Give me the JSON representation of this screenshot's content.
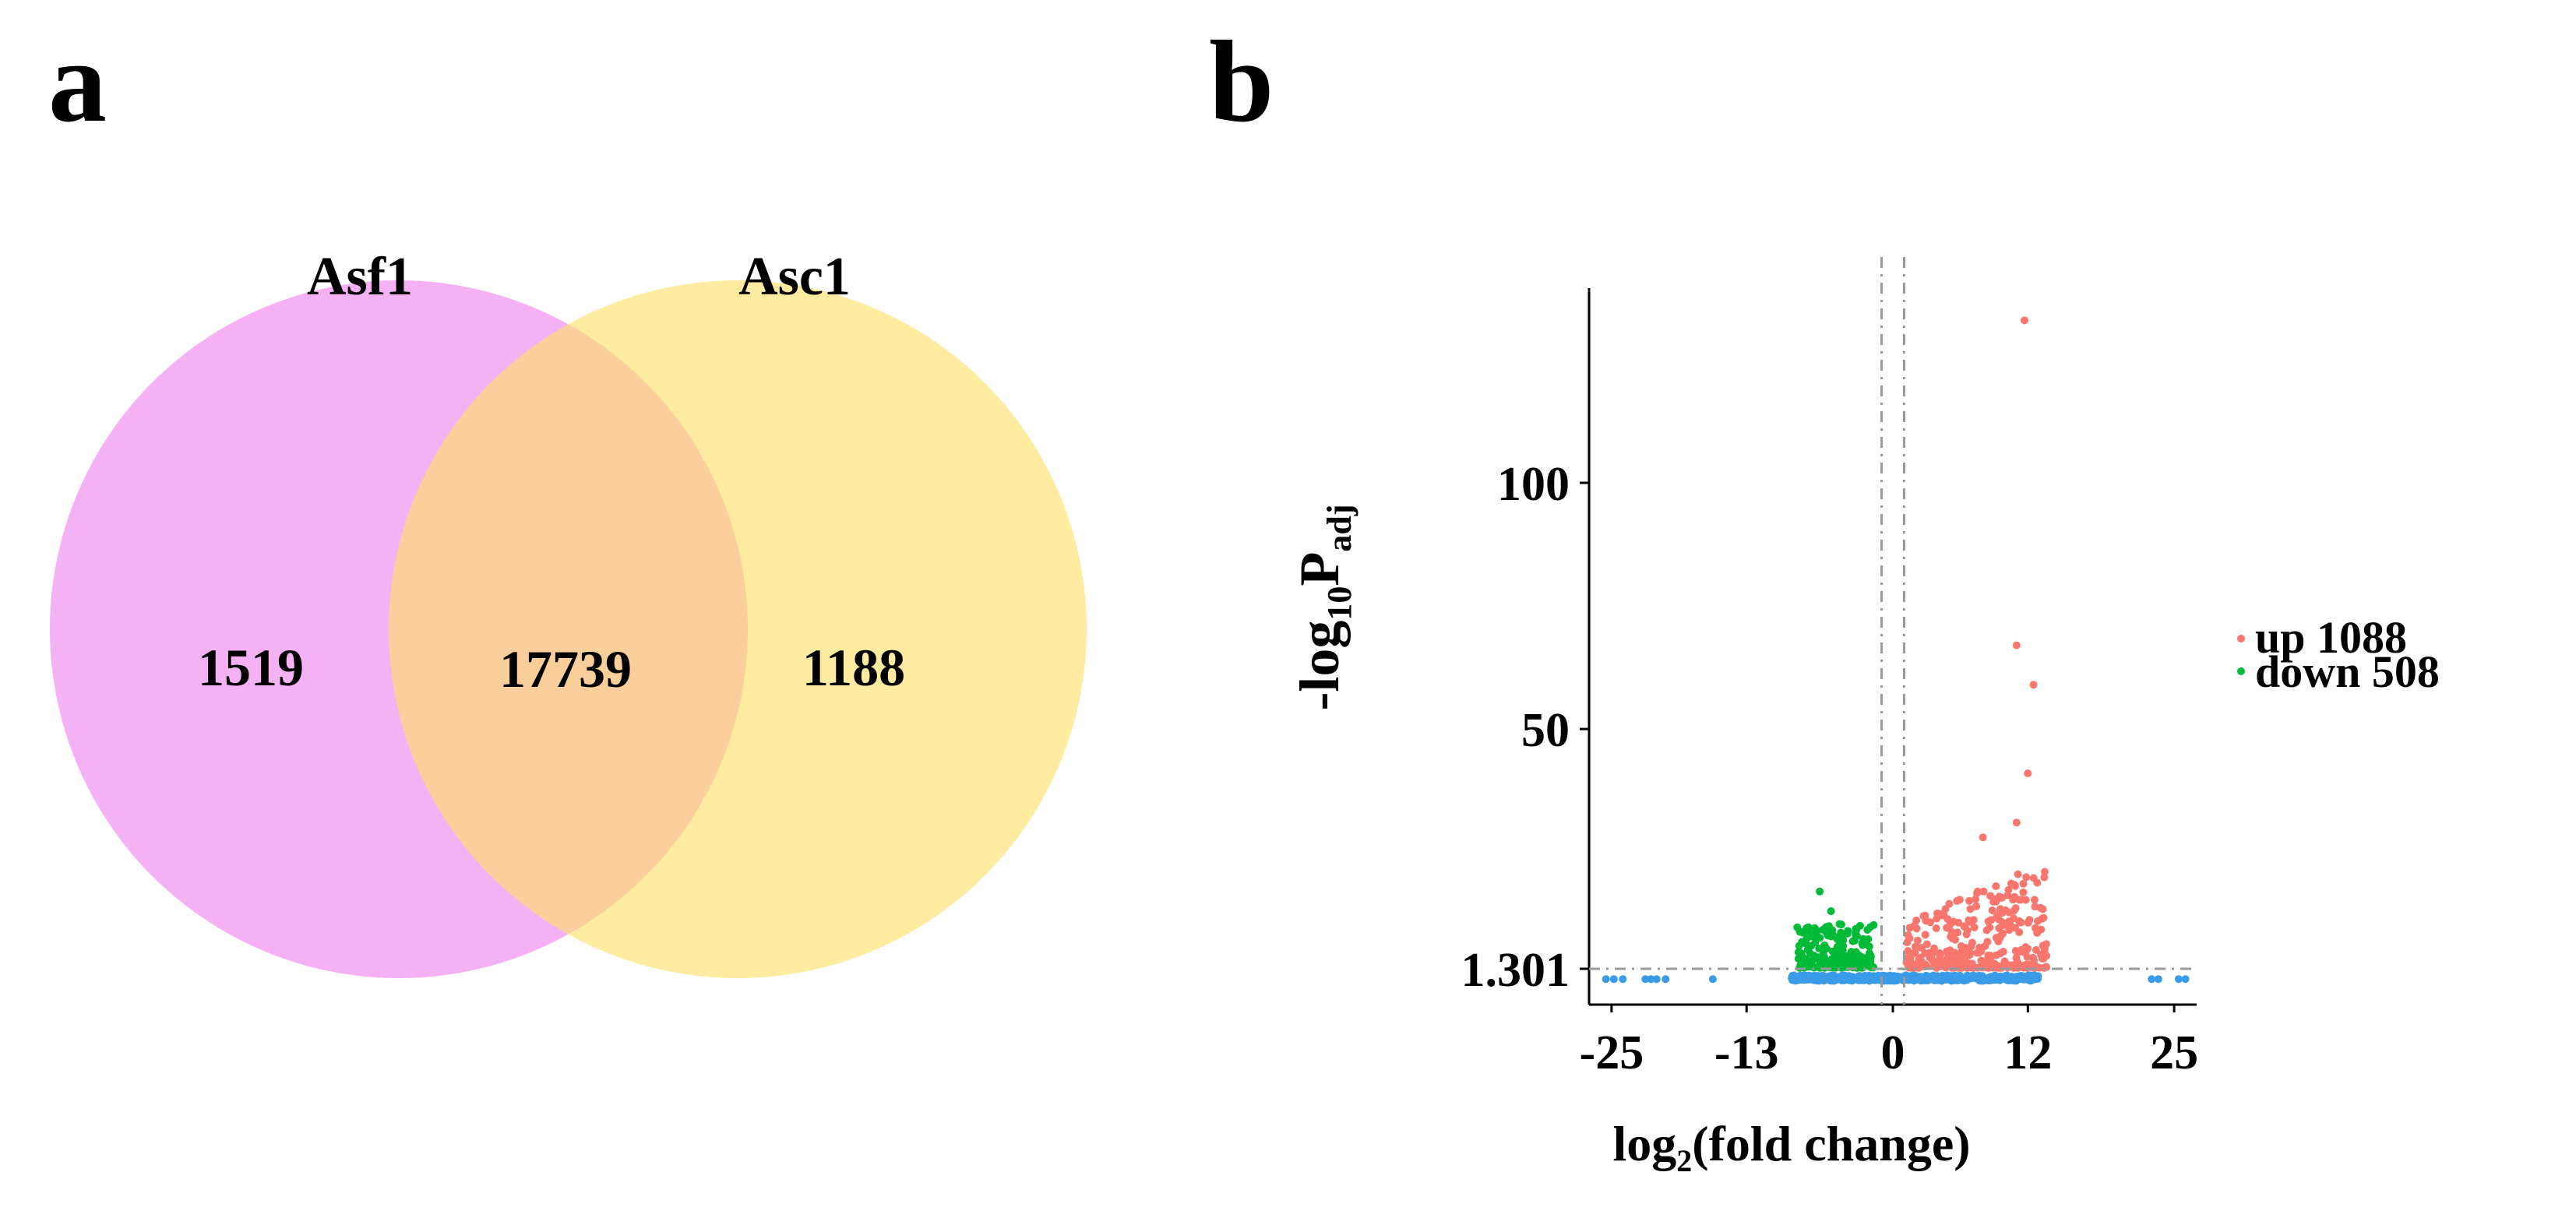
{
  "panel_a": {
    "letter": "a"
  },
  "panel_b": {
    "letter": "b"
  },
  "chart_data": [
    {
      "type": "venn",
      "sets": [
        {
          "name": "Asf1",
          "only": "1519",
          "color": "#ee82ee"
        },
        {
          "name": "Asc1",
          "only": "1188",
          "color": "#ffe066"
        }
      ],
      "intersection": "17739",
      "intersection_color": "#f4a3a0"
    },
    {
      "type": "scatter",
      "title": "",
      "xlabel": {
        "main": "log",
        "sub": "2",
        "tail": "(fold change)"
      },
      "ylabel": {
        "main": "-log",
        "sub": "10",
        "main2": "P",
        "sub2": "adj"
      },
      "xlim": [
        -27,
        27
      ],
      "ylim": [
        -2,
        140
      ],
      "x_ticks": [
        "-25",
        "-13",
        "0",
        "12",
        "25"
      ],
      "x_tick_values": [
        -25,
        -13,
        0,
        12,
        25
      ],
      "y_ticks": [
        "1.301",
        "50",
        "100"
      ],
      "y_tick_values": [
        1.301,
        50,
        100
      ],
      "threshold_y": 1.301,
      "threshold_x": [
        -1,
        1
      ],
      "legend": [
        {
          "label": "up 1088",
          "color": "#f8766d"
        },
        {
          "label": "down 508",
          "color": "#00ba38"
        }
      ],
      "series": [
        {
          "name": "up",
          "color": "#f8766d",
          "count": 1088,
          "notable_points": [
            [
              11.7,
              133
            ],
            [
              11,
              67
            ],
            [
              12.5,
              59
            ],
            [
              12,
              41
            ],
            [
              11,
              31
            ],
            [
              13.5,
              21
            ],
            [
              8,
              28
            ]
          ]
        },
        {
          "name": "down",
          "color": "#00ba38",
          "count": 508,
          "notable_points": [
            [
              -6.5,
              17
            ],
            [
              -5.5,
              13
            ],
            [
              -4,
              9
            ]
          ]
        },
        {
          "name": "not_significant",
          "color": "#3a9be8"
        }
      ]
    }
  ]
}
